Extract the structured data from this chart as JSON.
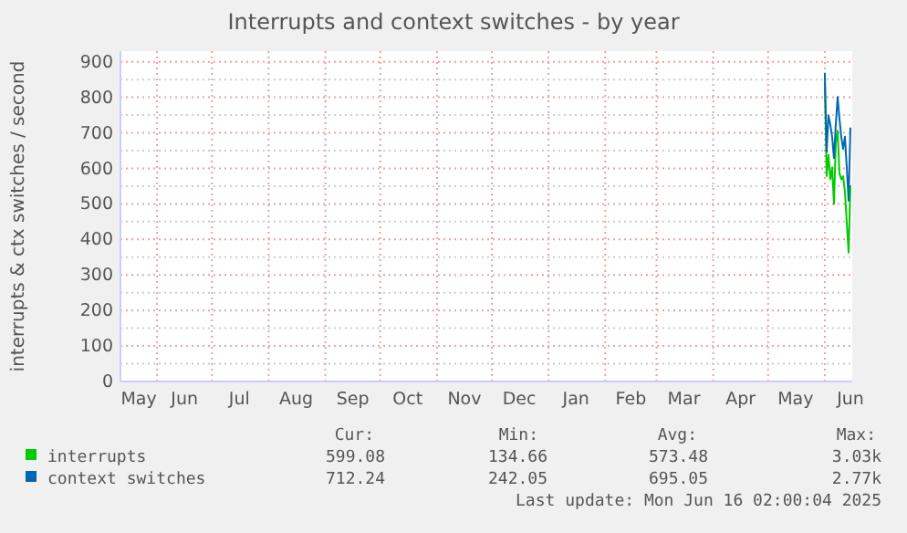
{
  "chart_data": {
    "type": "line",
    "title": "Interrupts and context switches - by year",
    "ylabel": "interrupts & ctx switches / second",
    "x": [
      "2025-06-01",
      "2025-06-02",
      "2025-06-03",
      "2025-06-04",
      "2025-06-05",
      "2025-06-06",
      "2025-06-07",
      "2025-06-08",
      "2025-06-09",
      "2025-06-10",
      "2025-06-11",
      "2025-06-12",
      "2025-06-13",
      "2025-06-14",
      "2025-06-15"
    ],
    "series": [
      {
        "name": "interrupts",
        "color": "#00cc00",
        "values": [
          843,
          578,
          638,
          569,
          603,
          500,
          672,
          706,
          586,
          569,
          578,
          535,
          449,
          363,
          552
        ]
      },
      {
        "name": "context switches",
        "color": "#0066b3",
        "values": [
          869,
          646,
          749,
          723,
          689,
          629,
          723,
          801,
          740,
          689,
          655,
          689,
          603,
          509,
          715
        ]
      }
    ],
    "xlim": [
      "2024-05-12",
      "2025-06-16"
    ],
    "xticks": [
      {
        "value": "2024-05-22",
        "label": "May"
      },
      {
        "value": "2024-06-01",
        "label": null
      },
      {
        "value": "2024-06-16",
        "label": "Jun"
      },
      {
        "value": "2024-07-01",
        "label": null
      },
      {
        "value": "2024-07-16",
        "label": "Jul"
      },
      {
        "value": "2024-08-01",
        "label": null
      },
      {
        "value": "2024-08-16",
        "label": "Aug"
      },
      {
        "value": "2024-09-01",
        "label": null
      },
      {
        "value": "2024-09-16",
        "label": "Sep"
      },
      {
        "value": "2024-10-01",
        "label": null
      },
      {
        "value": "2024-10-16",
        "label": "Oct"
      },
      {
        "value": "2024-11-01",
        "label": null
      },
      {
        "value": "2024-11-16",
        "label": "Nov"
      },
      {
        "value": "2024-12-01",
        "label": null
      },
      {
        "value": "2024-12-16",
        "label": "Dec"
      },
      {
        "value": "2025-01-01",
        "label": null
      },
      {
        "value": "2025-01-16",
        "label": "Jan"
      },
      {
        "value": "2025-02-01",
        "label": null
      },
      {
        "value": "2025-02-15",
        "label": "Feb"
      },
      {
        "value": "2025-03-01",
        "label": null
      },
      {
        "value": "2025-03-16",
        "label": "Mar"
      },
      {
        "value": "2025-04-01",
        "label": null
      },
      {
        "value": "2025-04-16",
        "label": "Apr"
      },
      {
        "value": "2025-05-01",
        "label": null
      },
      {
        "value": "2025-05-16",
        "label": "May"
      },
      {
        "value": "2025-06-01",
        "label": null
      },
      {
        "value": "2025-06-15",
        "label": "Jun"
      }
    ],
    "ylim": [
      0,
      930
    ],
    "yticks": [
      0,
      {
        "value": 50,
        "label": null
      },
      100,
      {
        "value": 150,
        "label": null
      },
      200,
      {
        "value": 250,
        "label": null
      },
      300,
      {
        "value": 350,
        "label": null
      },
      400,
      {
        "value": 450,
        "label": null
      },
      500,
      {
        "value": 550,
        "label": null
      },
      600,
      {
        "value": 650,
        "label": null
      },
      700,
      {
        "value": 750,
        "label": null
      },
      800,
      {
        "value": 850,
        "label": null
      },
      900
    ],
    "grid": true,
    "legend": "bottom",
    "marker": "none",
    "line_style": "solid",
    "annotations": [
      "Cur:",
      "Min:",
      "Avg:",
      "Max:",
      "599.08",
      "134.66",
      "573.48",
      "3.03k",
      "712.24",
      "242.05",
      "695.05",
      "2.77k",
      "Last update: Mon Jun 16 02:00:04 2025"
    ]
  }
}
